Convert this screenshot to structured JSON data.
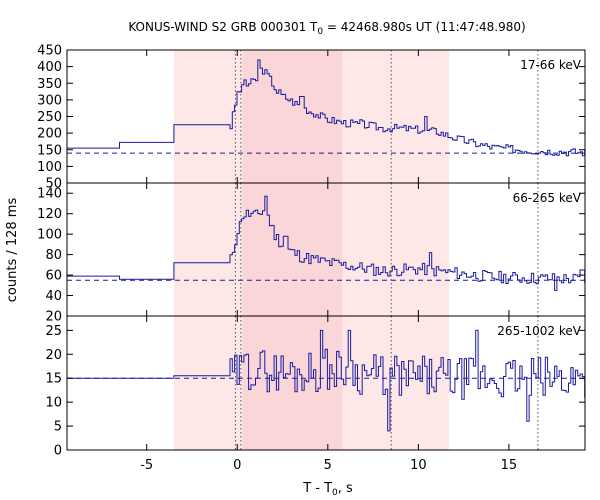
{
  "chart_data": {
    "type": "line",
    "title": "KONUS-WIND S2 GRB 000301 T0 = 42468.980s UT (11:47:48.980)",
    "title_parts": {
      "pre": "KONUS-WIND S2 GRB 000301 T",
      "sub": "0",
      "post": " = 42468.980s UT (11:47:48.980)"
    },
    "xlabel": "T - T0, s",
    "xlabel_parts": {
      "pre": "T - T",
      "sub": "0",
      "post": ", s"
    },
    "ylabel": "counts / 128 ms",
    "xlim": [
      -9.4,
      19.2
    ],
    "x_ticks": [
      -5,
      0,
      5,
      10,
      15
    ],
    "shaded_intervals": [
      {
        "x": [
          -3.5,
          11.7
        ],
        "color": "#fde7e7"
      },
      {
        "x": [
          0.3,
          5.8
        ],
        "color": "#fbd6d8"
      }
    ],
    "marker_lines": [
      -0.1,
      0.2,
      8.5,
      16.6
    ],
    "colors": {
      "series": "#1a1aa0",
      "background_line": "#1a1aa0",
      "marker": "#555555"
    },
    "panels": [
      {
        "name": "17-66 keV",
        "ylim": [
          50,
          450
        ],
        "y_ticks": [
          50,
          100,
          150,
          200,
          250,
          300,
          350,
          400,
          450
        ],
        "background": 140,
        "pre_steps": [
          [
            -9.4,
            155
          ],
          [
            -6.5,
            172
          ],
          [
            -3.5,
            225
          ],
          [
            -0.4,
            225
          ]
        ],
        "keys": [
          [
            -0.4,
            220
          ],
          [
            0.0,
            325
          ],
          [
            0.5,
            345
          ],
          [
            1.0,
            360
          ],
          [
            1.3,
            395
          ],
          [
            1.7,
            370
          ],
          [
            2.2,
            320
          ],
          [
            3.0,
            295
          ],
          [
            4.0,
            265
          ],
          [
            5.0,
            240
          ],
          [
            6.0,
            230
          ],
          [
            7.0,
            225
          ],
          [
            8.0,
            215
          ],
          [
            9.0,
            215
          ],
          [
            10.0,
            210
          ],
          [
            11.0,
            205
          ],
          [
            12.0,
            185
          ],
          [
            13.0,
            170
          ],
          [
            14.0,
            158
          ],
          [
            16.0,
            148
          ],
          [
            19.2,
            142
          ]
        ],
        "spikes": [
          [
            1.1,
            420
          ],
          [
            0.4,
            360
          ],
          [
            2.3,
            330
          ],
          [
            10.4,
            250
          ],
          [
            6.8,
            240
          ],
          [
            3.5,
            310
          ]
        ],
        "noise": 12,
        "seed": 3
      },
      {
        "name": "66-265 keV",
        "ylim": [
          20,
          150
        ],
        "y_ticks": [
          20,
          40,
          60,
          80,
          100,
          120,
          140
        ],
        "background": 55,
        "pre_steps": [
          [
            -9.4,
            59
          ],
          [
            -6.5,
            56
          ],
          [
            -3.5,
            72
          ],
          [
            -0.4,
            74
          ]
        ],
        "keys": [
          [
            -0.4,
            75
          ],
          [
            0.0,
            105
          ],
          [
            0.4,
            120
          ],
          [
            1.0,
            118
          ],
          [
            1.5,
            125
          ],
          [
            2.0,
            100
          ],
          [
            2.6,
            86
          ],
          [
            3.5,
            78
          ],
          [
            5.0,
            72
          ],
          [
            6.5,
            68
          ],
          [
            8.0,
            64
          ],
          [
            10.0,
            66
          ],
          [
            12.0,
            62
          ],
          [
            14.0,
            58
          ],
          [
            16.0,
            57
          ],
          [
            19.2,
            56
          ]
        ],
        "spikes": [
          [
            1.5,
            137
          ],
          [
            0.2,
            115
          ],
          [
            2.6,
            98
          ],
          [
            10.6,
            82
          ],
          [
            17.5,
            45
          ],
          [
            19.0,
            65
          ]
        ],
        "noise": 6,
        "seed": 11
      },
      {
        "name": "265-1002 keV",
        "ylim": [
          0,
          28
        ],
        "y_ticks": [
          0,
          5,
          10,
          15,
          20,
          25
        ],
        "background": 15,
        "pre_steps": [
          [
            -9.4,
            15
          ],
          [
            -6.5,
            15
          ],
          [
            -3.5,
            15.5
          ],
          [
            -0.4,
            15.5
          ]
        ],
        "keys": [
          [
            -0.4,
            15
          ],
          [
            0.5,
            17
          ],
          [
            1.0,
            17
          ],
          [
            3.0,
            16
          ],
          [
            5.0,
            17
          ],
          [
            8.0,
            15.5
          ],
          [
            12.0,
            15
          ],
          [
            19.2,
            15
          ]
        ],
        "spikes": [
          [
            4.6,
            25
          ],
          [
            6.1,
            25
          ],
          [
            8.3,
            4
          ],
          [
            13.2,
            25
          ],
          [
            16.0,
            6
          ],
          [
            0.5,
            20
          ]
        ],
        "noise": 4.5,
        "seed": 29
      }
    ]
  }
}
